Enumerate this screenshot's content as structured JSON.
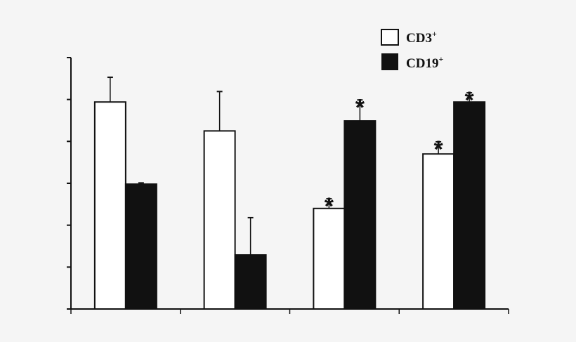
{
  "chart_data": {
    "type": "bar",
    "title": "",
    "xlabel": "",
    "ylabel": "",
    "categories": [
      "",
      "",
      "",
      ""
    ],
    "ylim": [
      0,
      6
    ],
    "yticks": [
      0,
      1,
      2,
      3,
      4,
      5,
      6
    ],
    "grid": false,
    "legend_position": "top-right",
    "series": [
      {
        "name": "CD3",
        "sup": "+",
        "color": "#ffffff",
        "values": [
          4.94,
          4.25,
          2.4,
          3.7
        ],
        "errors": [
          0.59,
          0.94,
          0.23,
          0.29
        ],
        "significant": [
          false,
          false,
          true,
          true
        ]
      },
      {
        "name": "CD19",
        "sup": "+",
        "color": "#111111",
        "values": [
          2.98,
          1.29,
          4.49,
          4.94
        ],
        "errors": [
          0.03,
          0.89,
          0.5,
          0.22
        ],
        "significant": [
          false,
          false,
          true,
          true
        ]
      }
    ],
    "significance_marker": "*"
  }
}
